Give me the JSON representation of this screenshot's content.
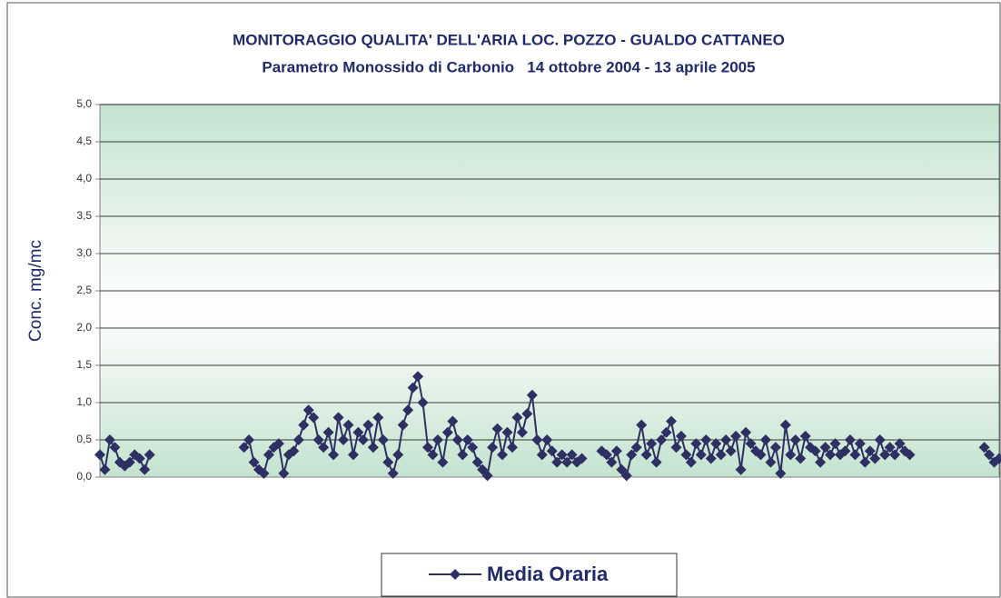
{
  "chart_data": {
    "type": "line",
    "title": "MONITORAGGIO QUALITA' DELL'ARIA LOC. POZZO - GUALDO CATTANEO",
    "subtitle": "Parametro Monossido di Carbonio   14 ottobre 2004 - 13 aprile 2005",
    "y_label": "Conc. mg/mc",
    "x": [
      0,
      1,
      2,
      3,
      4,
      5,
      6,
      7,
      8,
      9,
      10,
      11,
      29,
      30,
      31,
      32,
      33,
      34,
      35,
      36,
      37,
      38,
      39,
      40,
      41,
      42,
      43,
      44,
      45,
      46,
      47,
      48,
      49,
      50,
      51,
      52,
      53,
      54,
      55,
      56,
      57,
      58,
      59,
      60,
      61,
      62,
      63,
      64,
      65,
      66,
      67,
      68,
      69,
      70,
      71,
      72,
      73,
      74,
      75,
      76,
      77,
      78,
      79,
      80,
      81,
      82,
      83,
      84,
      85,
      86,
      87,
      88,
      89,
      90,
      91,
      92,
      93,
      94,
      95,
      96,
      97,
      98,
      101,
      102,
      103,
      104,
      105,
      106,
      107,
      108,
      109,
      110,
      111,
      112,
      113,
      114,
      115,
      116,
      117,
      118,
      119,
      120,
      121,
      122,
      123,
      124,
      125,
      126,
      127,
      128,
      129,
      130,
      131,
      132,
      133,
      134,
      135,
      136,
      137,
      138,
      139,
      140,
      141,
      142,
      143,
      144,
      145,
      146,
      147,
      148,
      149,
      150,
      151,
      152,
      153,
      154,
      155,
      156,
      157,
      158,
      159,
      160,
      161,
      162,
      163,
      164,
      178,
      179,
      180,
      181
    ],
    "series": [
      {
        "name": "Media Oraria",
        "color": "#2e2f63",
        "values": [
          0.3,
          0.1,
          0.5,
          0.4,
          0.2,
          0.15,
          0.2,
          0.3,
          0.25,
          0.1,
          0.3,
          null,
          0.4,
          0.5,
          0.2,
          0.1,
          0.05,
          0.3,
          0.4,
          0.45,
          0.05,
          0.3,
          0.35,
          0.5,
          0.7,
          0.9,
          0.8,
          0.5,
          0.4,
          0.6,
          0.3,
          0.8,
          0.5,
          0.7,
          0.3,
          0.6,
          0.5,
          0.7,
          0.4,
          0.8,
          0.5,
          0.2,
          0.05,
          0.3,
          0.7,
          0.9,
          1.2,
          1.35,
          1.0,
          0.4,
          0.3,
          0.5,
          0.2,
          0.6,
          0.75,
          0.5,
          0.3,
          0.5,
          0.4,
          0.2,
          0.1,
          0.02,
          0.4,
          0.65,
          0.3,
          0.6,
          0.4,
          0.8,
          0.6,
          0.85,
          1.1,
          0.5,
          0.3,
          0.5,
          0.35,
          0.2,
          0.3,
          0.2,
          0.3,
          0.2,
          0.25,
          null,
          0.35,
          0.3,
          0.2,
          0.35,
          0.1,
          0.02,
          0.3,
          0.4,
          0.7,
          0.3,
          0.45,
          0.2,
          0.5,
          0.6,
          0.75,
          0.4,
          0.55,
          0.3,
          0.2,
          0.45,
          0.3,
          0.5,
          0.25,
          0.45,
          0.3,
          0.5,
          0.35,
          0.55,
          0.1,
          0.6,
          0.45,
          0.35,
          0.3,
          0.5,
          0.2,
          0.4,
          0.05,
          0.7,
          0.3,
          0.5,
          0.25,
          0.55,
          0.4,
          0.35,
          0.2,
          0.4,
          0.3,
          0.45,
          0.3,
          0.35,
          0.5,
          0.3,
          0.45,
          0.2,
          0.35,
          0.25,
          0.5,
          0.3,
          0.4,
          0.3,
          0.45,
          0.35,
          0.3,
          null,
          0.4,
          0.3,
          0.2,
          0.25
        ]
      }
    ],
    "xlim": [
      0,
      181
    ],
    "ylim": [
      0,
      5
    ],
    "yticks": [
      {
        "value": 0,
        "label": "0,0"
      },
      {
        "value": 0.5,
        "label": "0,5"
      },
      {
        "value": 1,
        "label": "1,0"
      },
      {
        "value": 1.5,
        "label": "1,5"
      },
      {
        "value": 2,
        "label": "2,0"
      },
      {
        "value": 2.5,
        "label": "2,5"
      },
      {
        "value": 3,
        "label": "3,0"
      },
      {
        "value": 3.5,
        "label": "3,5"
      },
      {
        "value": 4,
        "label": "4,0"
      },
      {
        "value": 4.5,
        "label": "4,5"
      },
      {
        "value": 5,
        "label": "5,0"
      }
    ],
    "grid": true
  }
}
